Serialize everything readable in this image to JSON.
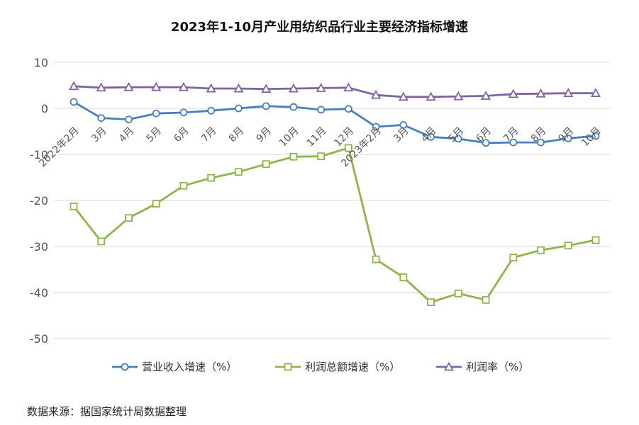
{
  "chart_data": {
    "type": "line",
    "title": "2023年1-10月产业用纺织品行业主要经济指标增速",
    "xlabel": "",
    "ylabel": "",
    "ylim": [
      -50,
      10
    ],
    "yticks": [
      10,
      0,
      -10,
      -20,
      -30,
      -40,
      -50
    ],
    "grid": true,
    "legend_position": "bottom",
    "categories": [
      "2022年2月",
      "3月",
      "4月",
      "5月",
      "6月",
      "7月",
      "8月",
      "9月",
      "10月",
      "11月",
      "12月",
      "2023年2月",
      "3月",
      "4月",
      "5月",
      "6月",
      "7月",
      "8月",
      "9月",
      "10月"
    ],
    "series": [
      {
        "name": "营业收入增速（%）",
        "color": "#4a7ebb",
        "marker": "circle",
        "values": [
          1.4,
          -2.1,
          -2.4,
          -1.1,
          -0.9,
          -0.5,
          0.0,
          0.5,
          0.3,
          -0.3,
          -0.1,
          -4.0,
          -3.6,
          -6.2,
          -6.6,
          -7.5,
          -7.4,
          -7.4,
          -6.5,
          -6.0
        ]
      },
      {
        "name": "利润总额增速（%）",
        "color": "#8db54a",
        "marker": "square",
        "values": [
          -21.3,
          -28.9,
          -23.8,
          -20.7,
          -16.8,
          -15.1,
          -13.8,
          -12.1,
          -10.5,
          -10.4,
          -8.6,
          -32.8,
          -36.7,
          -42.1,
          -40.2,
          -41.6,
          -32.4,
          -30.8,
          -29.8,
          -28.6
        ]
      },
      {
        "name": "利润率（%）",
        "color": "#8064a2",
        "marker": "triangle",
        "values": [
          4.8,
          4.5,
          4.6,
          4.6,
          4.6,
          4.3,
          4.3,
          4.2,
          4.3,
          4.4,
          4.5,
          2.9,
          2.5,
          2.5,
          2.6,
          2.7,
          3.1,
          3.2,
          3.3,
          3.3
        ]
      }
    ]
  },
  "source_note": "数据来源：据国家统计局数据整理"
}
